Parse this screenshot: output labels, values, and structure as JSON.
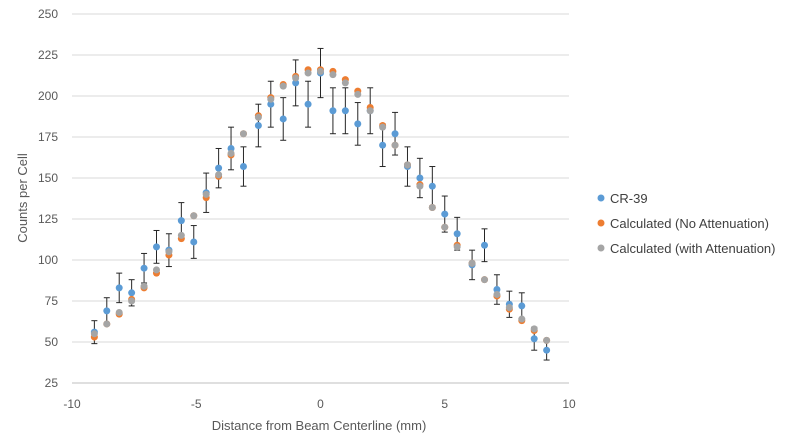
{
  "chart_data": {
    "type": "scatter",
    "title": "",
    "xlabel": "Distance from Beam Centerline (mm)",
    "ylabel": "Counts per Cell",
    "xlim": [
      -10,
      10
    ],
    "ylim": [
      25,
      250
    ],
    "xticks": [
      -10,
      -5,
      0,
      5,
      10
    ],
    "yticks": [
      25,
      50,
      75,
      100,
      125,
      150,
      175,
      200,
      225,
      250
    ],
    "grid": "horizontal",
    "legend_position": "right",
    "x": [
      -9.1,
      -8.6,
      -8.1,
      -7.6,
      -7.1,
      -6.6,
      -6.1,
      -5.6,
      -5.1,
      -4.6,
      -4.1,
      -3.6,
      -3.1,
      -2.5,
      -2.0,
      -1.5,
      -1.0,
      -0.5,
      0.0,
      0.5,
      1.0,
      1.5,
      2.0,
      2.5,
      3.0,
      3.5,
      4.0,
      4.5,
      5.0,
      5.5,
      6.1,
      6.6,
      7.1,
      7.6,
      8.1,
      8.6,
      9.1
    ],
    "series": [
      {
        "name": "CR-39",
        "color": "#5b9bd5",
        "values": [
          56,
          69,
          83,
          80,
          95,
          108,
          106,
          124,
          111,
          141,
          156,
          168,
          157,
          182,
          195,
          186,
          208,
          195,
          214,
          191,
          191,
          183,
          191,
          170,
          177,
          157,
          150,
          145,
          128,
          116,
          97,
          109,
          82,
          73,
          72,
          52,
          45
        ],
        "error": [
          7,
          8,
          9,
          8,
          9,
          10,
          10,
          11,
          10,
          12,
          12,
          13,
          12,
          13,
          14,
          13,
          14,
          14,
          15,
          14,
          14,
          13,
          14,
          13,
          13,
          12,
          12,
          12,
          11,
          10,
          9,
          10,
          9,
          8,
          8,
          7,
          6
        ]
      },
      {
        "name": "Calculated (No Attenuation)",
        "color": "#ed7d31",
        "values": [
          53,
          61,
          67,
          76,
          83,
          92,
          103,
          113,
          127,
          138,
          151,
          164,
          177,
          188,
          199,
          207,
          212,
          216,
          216,
          215,
          210,
          203,
          193,
          182,
          170,
          158,
          146,
          132,
          120,
          109,
          98,
          88,
          78,
          70,
          63,
          57,
          51
        ]
      },
      {
        "name": "Calculated (with Attenuation)",
        "color": "#a5a5a5",
        "values": [
          55,
          61,
          68,
          75,
          84,
          94,
          105,
          115,
          127,
          140,
          152,
          165,
          177,
          187,
          198,
          206,
          211,
          214,
          215,
          213,
          208,
          201,
          191,
          181,
          170,
          158,
          145,
          132,
          120,
          108,
          98,
          88,
          79,
          71,
          64,
          58,
          51
        ]
      }
    ]
  }
}
